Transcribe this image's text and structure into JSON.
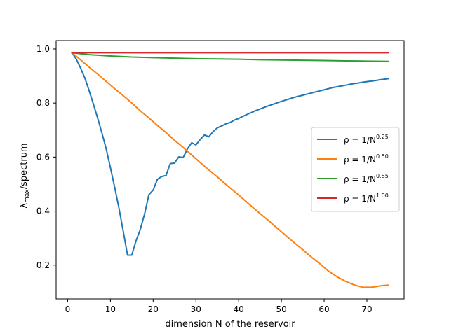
{
  "chart_data": {
    "type": "line",
    "title": "",
    "xlabel": "dimension N of the reservoir",
    "ylabel": {
      "base": "λ",
      "sub": "max",
      "rest": "/spectrum"
    },
    "xlim": [
      -2.7,
      78.7
    ],
    "ylim": [
      0.075,
      1.031
    ],
    "xticks": [
      0,
      10,
      20,
      30,
      40,
      50,
      60,
      70
    ],
    "xtick_labels": [
      "0",
      "10",
      "20",
      "30",
      "40",
      "50",
      "60",
      "70"
    ],
    "yticks": [
      0.2,
      0.4,
      0.6,
      0.8,
      1.0
    ],
    "ytick_labels": [
      "0.2",
      "0.4",
      "0.6",
      "0.8",
      "1.0"
    ],
    "grid": false,
    "legend_position": "center-right",
    "series": [
      {
        "name": {
          "prefix": "ρ = 1/N",
          "exp": "0.25"
        },
        "color": "#1f77b4",
        "x": [
          1,
          2,
          3,
          4,
          5,
          6,
          7,
          8,
          9,
          10,
          11,
          12,
          13,
          14,
          15,
          16,
          17,
          18,
          19,
          20,
          21,
          22,
          23,
          24,
          25,
          26,
          27,
          28,
          29,
          30,
          31,
          32,
          33,
          34,
          35,
          36,
          37,
          38,
          39,
          40,
          41,
          42,
          43,
          44,
          45,
          46,
          47,
          48,
          49,
          50,
          51,
          52,
          53,
          54,
          55,
          56,
          57,
          58,
          59,
          60,
          61,
          62,
          63,
          64,
          65,
          66,
          67,
          68,
          69,
          70,
          71,
          72,
          73,
          74,
          75
        ],
        "y": [
          0.986,
          0.963,
          0.93,
          0.893,
          0.847,
          0.797,
          0.745,
          0.69,
          0.631,
          0.561,
          0.488,
          0.411,
          0.325,
          0.237,
          0.237,
          0.29,
          0.333,
          0.39,
          0.461,
          0.478,
          0.518,
          0.528,
          0.532,
          0.576,
          0.578,
          0.601,
          0.598,
          0.63,
          0.653,
          0.645,
          0.665,
          0.682,
          0.675,
          0.694,
          0.708,
          0.715,
          0.723,
          0.728,
          0.737,
          0.743,
          0.751,
          0.758,
          0.765,
          0.772,
          0.778,
          0.784,
          0.79,
          0.795,
          0.801,
          0.806,
          0.811,
          0.816,
          0.821,
          0.825,
          0.829,
          0.833,
          0.837,
          0.841,
          0.845,
          0.849,
          0.853,
          0.857,
          0.86,
          0.863,
          0.866,
          0.869,
          0.872,
          0.874,
          0.877,
          0.879,
          0.881,
          0.883,
          0.886,
          0.888,
          0.89
        ]
      },
      {
        "name": {
          "prefix": "ρ = 1/N",
          "exp": "0.50"
        },
        "color": "#ff7f0e",
        "x": [
          1,
          3,
          5,
          7,
          9,
          11,
          13,
          15,
          17,
          19,
          21,
          23,
          25,
          27,
          29,
          31,
          33,
          35,
          37,
          39,
          41,
          43,
          45,
          47,
          49,
          51,
          53,
          55,
          57,
          59,
          61,
          63,
          65,
          67,
          69,
          71,
          72,
          73,
          74,
          75
        ],
        "y": [
          0.986,
          0.96,
          0.933,
          0.907,
          0.88,
          0.853,
          0.827,
          0.8,
          0.771,
          0.745,
          0.717,
          0.691,
          0.662,
          0.636,
          0.608,
          0.58,
          0.553,
          0.527,
          0.499,
          0.473,
          0.446,
          0.418,
          0.391,
          0.365,
          0.337,
          0.31,
          0.283,
          0.257,
          0.23,
          0.205,
          0.178,
          0.157,
          0.14,
          0.127,
          0.118,
          0.118,
          0.12,
          0.123,
          0.125,
          0.126
        ]
      },
      {
        "name": {
          "prefix": "ρ = 1/N",
          "exp": "0.85"
        },
        "color": "#2ca02c",
        "x": [
          1,
          5,
          10,
          15,
          20,
          25,
          30,
          35,
          40,
          45,
          50,
          55,
          60,
          65,
          70,
          75
        ],
        "y": [
          0.986,
          0.979,
          0.974,
          0.97,
          0.968,
          0.966,
          0.964,
          0.963,
          0.962,
          0.96,
          0.959,
          0.958,
          0.957,
          0.956,
          0.955,
          0.954
        ]
      },
      {
        "name": {
          "prefix": "ρ = 1/N",
          "exp": "1.00"
        },
        "color": "#d62728",
        "x": [
          1,
          75
        ],
        "y": [
          0.986,
          0.986
        ]
      }
    ]
  }
}
